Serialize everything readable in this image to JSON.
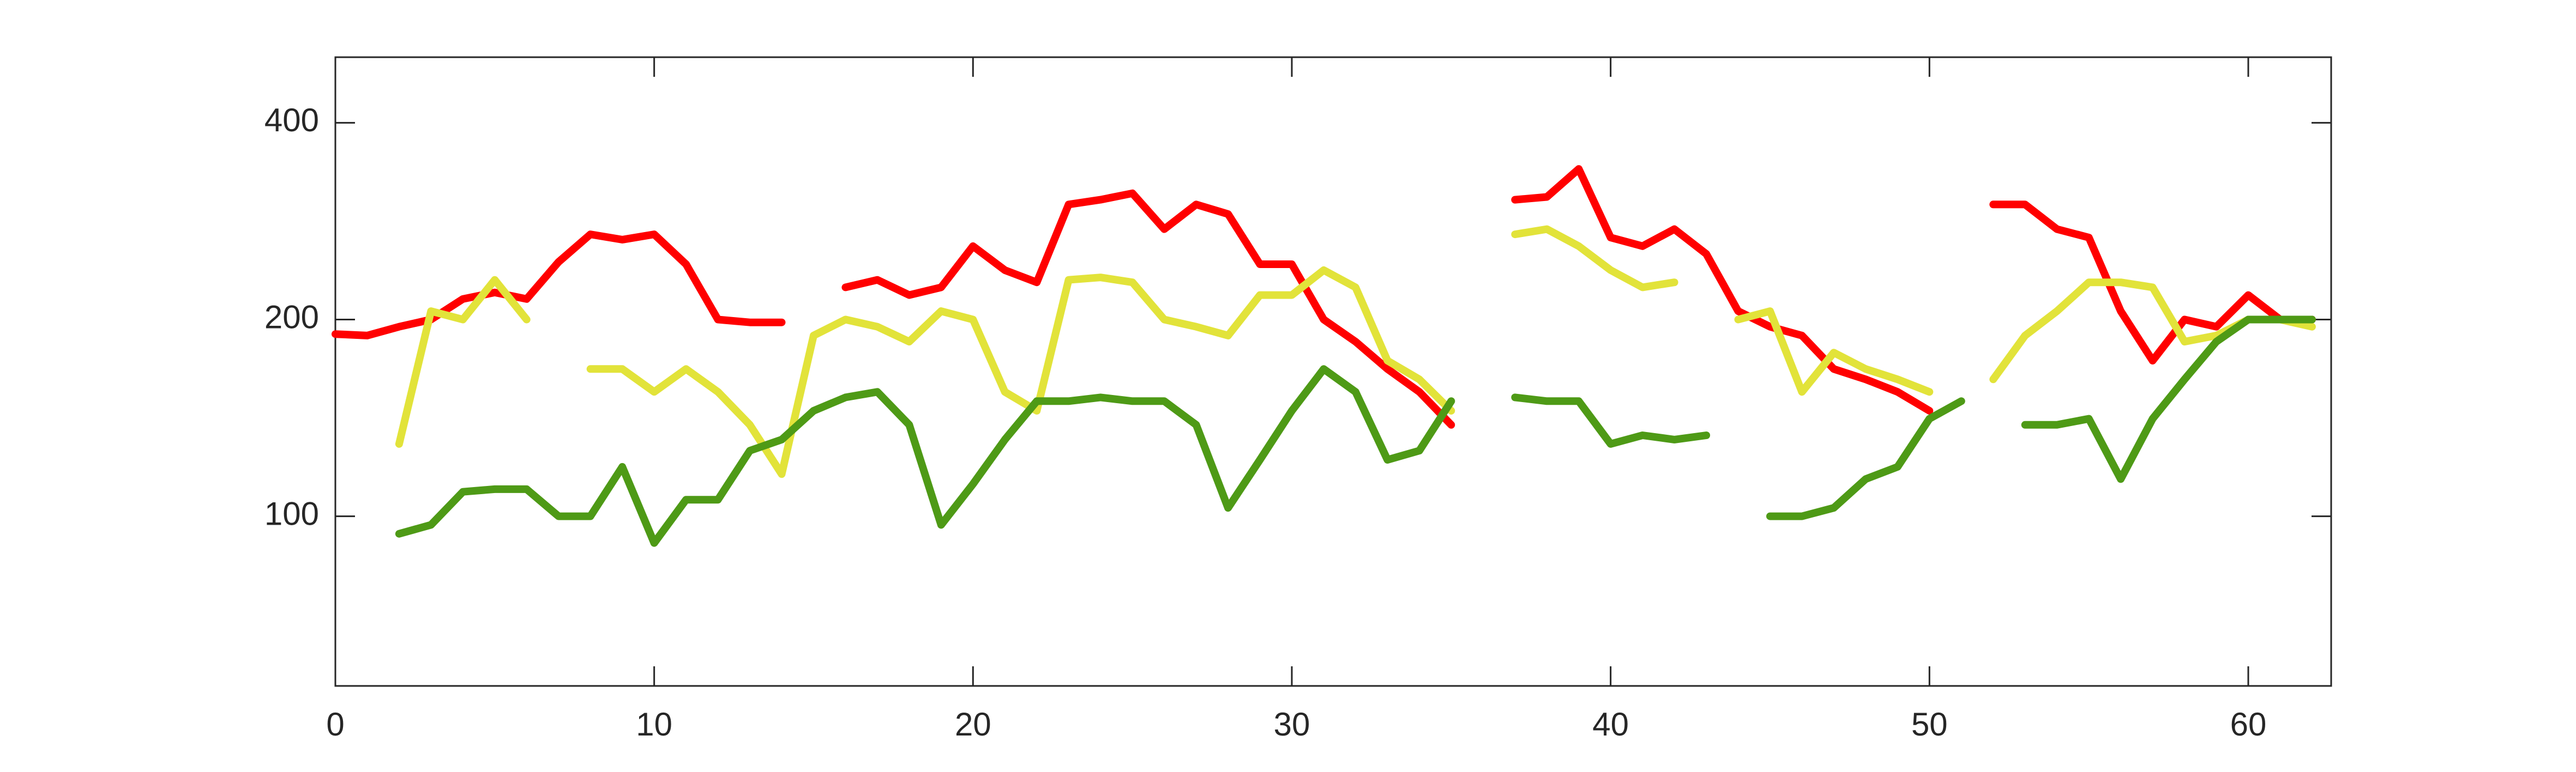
{
  "chart_data": {
    "type": "line",
    "x": [
      0,
      1,
      2,
      3,
      4,
      5,
      6,
      7,
      8,
      9,
      10,
      11,
      12,
      13,
      14,
      15,
      16,
      17,
      18,
      19,
      20,
      21,
      22,
      23,
      24,
      25,
      26,
      27,
      28,
      29,
      30,
      31,
      32,
      33,
      34,
      35,
      36,
      37,
      38,
      39,
      40,
      41,
      42,
      43,
      44,
      45,
      46,
      47,
      48,
      49,
      50,
      51,
      52,
      53,
      54,
      55,
      56,
      57,
      58,
      59,
      60,
      61,
      62
    ],
    "series": [
      {
        "color": "#ff0000",
        "values": [
          190,
          189,
          195,
          200,
          215,
          220,
          215,
          245,
          270,
          265,
          270,
          243,
          200,
          198,
          198,
          null,
          224,
          230,
          218,
          224,
          259,
          238,
          228,
          300,
          305,
          312,
          275,
          300,
          290,
          243,
          243,
          200,
          185,
          168,
          155,
          138,
          null,
          305,
          308,
          340,
          267,
          259,
          275,
          252,
          206,
          195,
          189,
          168,
          162,
          155,
          145,
          null,
          300,
          300,
          275,
          267,
          206,
          173,
          200,
          195,
          218,
          200,
          200
        ]
      },
      {
        "color": "#e2e33a",
        "values": [
          null,
          null,
          129,
          206,
          200,
          230,
          200,
          null,
          168,
          168,
          155,
          168,
          155,
          138,
          116,
          189,
          200,
          195,
          185,
          206,
          200,
          155,
          145,
          230,
          232,
          228,
          200,
          195,
          189,
          218,
          218,
          238,
          224,
          173,
          162,
          145,
          null,
          270,
          275,
          259,
          238,
          224,
          228,
          null,
          200,
          206,
          155,
          178,
          168,
          162,
          155,
          null,
          162,
          189,
          206,
          228,
          228,
          224,
          185,
          189,
          200,
          200,
          195
        ]
      },
      {
        "color": "#4e9a16",
        "values": [
          null,
          null,
          94,
          97,
          109,
          110,
          110,
          100,
          100,
          119,
          91,
          106,
          106,
          126,
          131,
          145,
          152,
          155,
          138,
          97,
          112,
          131,
          150,
          150,
          152,
          150,
          150,
          138,
          103,
          122,
          145,
          168,
          155,
          122,
          126,
          150,
          null,
          152,
          150,
          150,
          129,
          133,
          131,
          133,
          null,
          100,
          100,
          103,
          114,
          119,
          141,
          150,
          null,
          138,
          138,
          141,
          114,
          141,
          162,
          185,
          200,
          200,
          200
        ]
      }
    ],
    "xlim": [
      0,
      62.6
    ],
    "ylim": [
      55,
      504
    ],
    "log_y": true,
    "xticks": [
      0,
      10,
      20,
      30,
      40,
      50,
      60
    ],
    "yticks": [
      100,
      200,
      400
    ]
  }
}
